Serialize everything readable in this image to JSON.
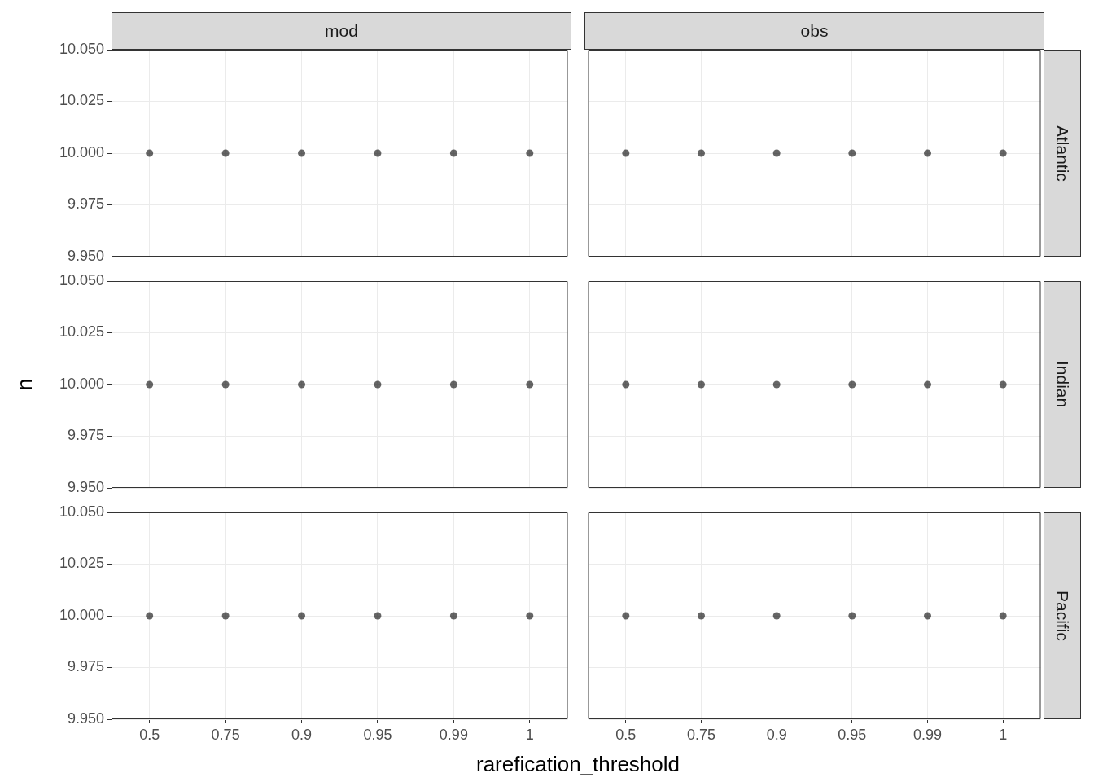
{
  "chart_data": [
    {
      "type": "scatter",
      "title": "mod",
      "categories": [
        "0.5",
        "0.75",
        "0.9",
        "0.95",
        "0.99",
        "1"
      ],
      "ylim": [
        9.95,
        10.05
      ],
      "yticks": [
        {
          "value": 9.95,
          "label": "9.950"
        },
        {
          "value": 9.975,
          "label": "9.975"
        },
        {
          "value": 10,
          "label": "10.000"
        },
        {
          "value": 10.025,
          "label": "10.025"
        },
        {
          "value": 10.05,
          "label": "10.050"
        }
      ],
      "grid": true,
      "marker": "circle",
      "tick_labels": "y",
      "series": [
        {
          "color": "#000000",
          "x": [
            "0.5",
            "0.75",
            "0.9",
            "0.95",
            "0.99",
            "1"
          ],
          "values": [
            10,
            10,
            10,
            10,
            10,
            10
          ]
        }
      ]
    },
    {
      "type": "scatter",
      "title": "obs",
      "y2label": "Atlantic",
      "categories": [
        "0.5",
        "0.75",
        "0.9",
        "0.95",
        "0.99",
        "1"
      ],
      "ylim": [
        9.95,
        10.05
      ],
      "yticks": [
        9.95,
        9.975,
        10,
        10.025,
        10.05
      ],
      "grid": true,
      "marker": "circle",
      "tick_labels": false,
      "series": [
        {
          "color": "#000000",
          "x": [
            "0.5",
            "0.75",
            "0.9",
            "0.95",
            "0.99",
            "1"
          ],
          "values": [
            10,
            10,
            10,
            10,
            10,
            10
          ]
        }
      ]
    },
    {
      "type": "scatter",
      "ylabel": "n",
      "categories": [
        "0.5",
        "0.75",
        "0.9",
        "0.95",
        "0.99",
        "1"
      ],
      "ylim": [
        9.95,
        10.05
      ],
      "yticks": [
        {
          "value": 9.95,
          "label": "9.950"
        },
        {
          "value": 9.975,
          "label": "9.975"
        },
        {
          "value": 10,
          "label": "10.000"
        },
        {
          "value": 10.025,
          "label": "10.025"
        },
        {
          "value": 10.05,
          "label": "10.050"
        }
      ],
      "grid": true,
      "marker": "circle",
      "tick_labels": "y",
      "series": [
        {
          "color": "#000000",
          "x": [
            "0.5",
            "0.75",
            "0.9",
            "0.95",
            "0.99",
            "1"
          ],
          "values": [
            10,
            10,
            10,
            10,
            10,
            10
          ]
        }
      ]
    },
    {
      "type": "scatter",
      "y2label": "Indian",
      "categories": [
        "0.5",
        "0.75",
        "0.9",
        "0.95",
        "0.99",
        "1"
      ],
      "ylim": [
        9.95,
        10.05
      ],
      "yticks": [
        9.95,
        9.975,
        10,
        10.025,
        10.05
      ],
      "grid": true,
      "marker": "circle",
      "tick_labels": false,
      "series": [
        {
          "color": "#000000",
          "x": [
            "0.5",
            "0.75",
            "0.9",
            "0.95",
            "0.99",
            "1"
          ],
          "values": [
            10,
            10,
            10,
            10,
            10,
            10
          ]
        }
      ]
    },
    {
      "type": "scatter",
      "xlabel": "rarefication_threshold",
      "categories": [
        "0.5",
        "0.75",
        "0.9",
        "0.95",
        "0.99",
        "1"
      ],
      "ylim": [
        9.95,
        10.05
      ],
      "yticks": [
        {
          "value": 9.95,
          "label": "9.950"
        },
        {
          "value": 9.975,
          "label": "9.975"
        },
        {
          "value": 10,
          "label": "10.000"
        },
        {
          "value": 10.025,
          "label": "10.025"
        },
        {
          "value": 10.05,
          "label": "10.050"
        }
      ],
      "grid": true,
      "marker": "circle",
      "series": [
        {
          "color": "#000000",
          "x": [
            "0.5",
            "0.75",
            "0.9",
            "0.95",
            "0.99",
            "1"
          ],
          "values": [
            10,
            10,
            10,
            10,
            10,
            10
          ]
        }
      ]
    },
    {
      "type": "scatter",
      "y2label": "Pacific",
      "categories": [
        "0.5",
        "0.75",
        "0.9",
        "0.95",
        "0.99",
        "1"
      ],
      "ylim": [
        9.95,
        10.05
      ],
      "yticks": [
        9.95,
        9.975,
        10,
        10.025,
        10.05
      ],
      "grid": true,
      "marker": "circle",
      "tick_labels": "x",
      "series": [
        {
          "color": "#000000",
          "x": [
            "0.5",
            "0.75",
            "0.9",
            "0.95",
            "0.99",
            "1"
          ],
          "values": [
            10,
            10,
            10,
            10,
            10,
            10
          ]
        }
      ]
    }
  ]
}
